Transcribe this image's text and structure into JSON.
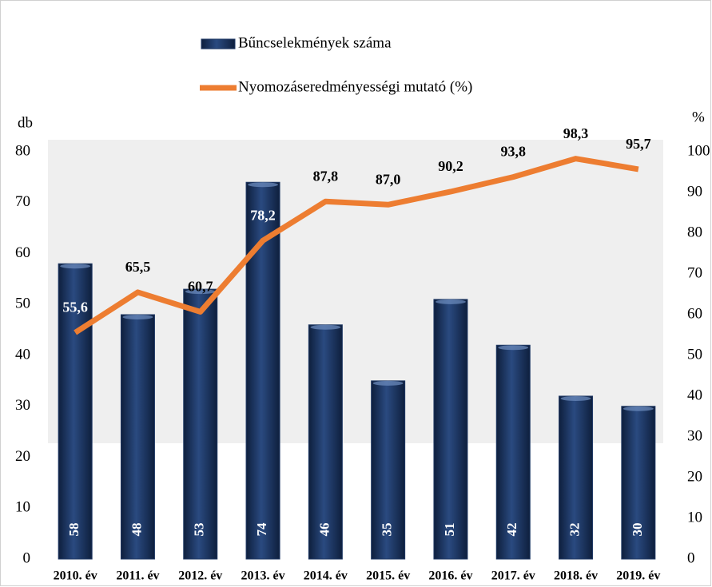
{
  "chart_data": {
    "type": "bar",
    "categories": [
      "2010. év",
      "2011. év",
      "2012. év",
      "2013. év",
      "2014. év",
      "2015. év",
      "2016. év",
      "2017. év",
      "2018. év",
      "2019. év"
    ],
    "series": [
      {
        "name": "Bűncselekmények száma",
        "type": "bar",
        "color": "#1f3864",
        "values": [
          58,
          48,
          53,
          74,
          46,
          35,
          51,
          42,
          32,
          30
        ]
      },
      {
        "name": "Nyomozáseredményességi mutató (%)",
        "type": "line",
        "axis": "y2",
        "color": "#ed7d31",
        "values": [
          55.6,
          65.5,
          60.7,
          78.2,
          87.8,
          87.0,
          90.2,
          93.8,
          98.3,
          95.7
        ],
        "value_labels": [
          "55,6",
          "65,5",
          "60,7",
          "78,2",
          "87,8",
          "87,0",
          "90,2",
          "93,8",
          "98,3",
          "95,7"
        ]
      }
    ],
    "ylabel": "db",
    "y2label": "%",
    "ylim": [
      0,
      80
    ],
    "yticks": [
      0,
      10,
      20,
      30,
      40,
      50,
      60,
      70,
      80
    ],
    "y2lim": [
      0,
      100
    ],
    "y2ticks": [
      0,
      10,
      20,
      30,
      40,
      50,
      60,
      70,
      80,
      90,
      100
    ],
    "legend": "top"
  }
}
